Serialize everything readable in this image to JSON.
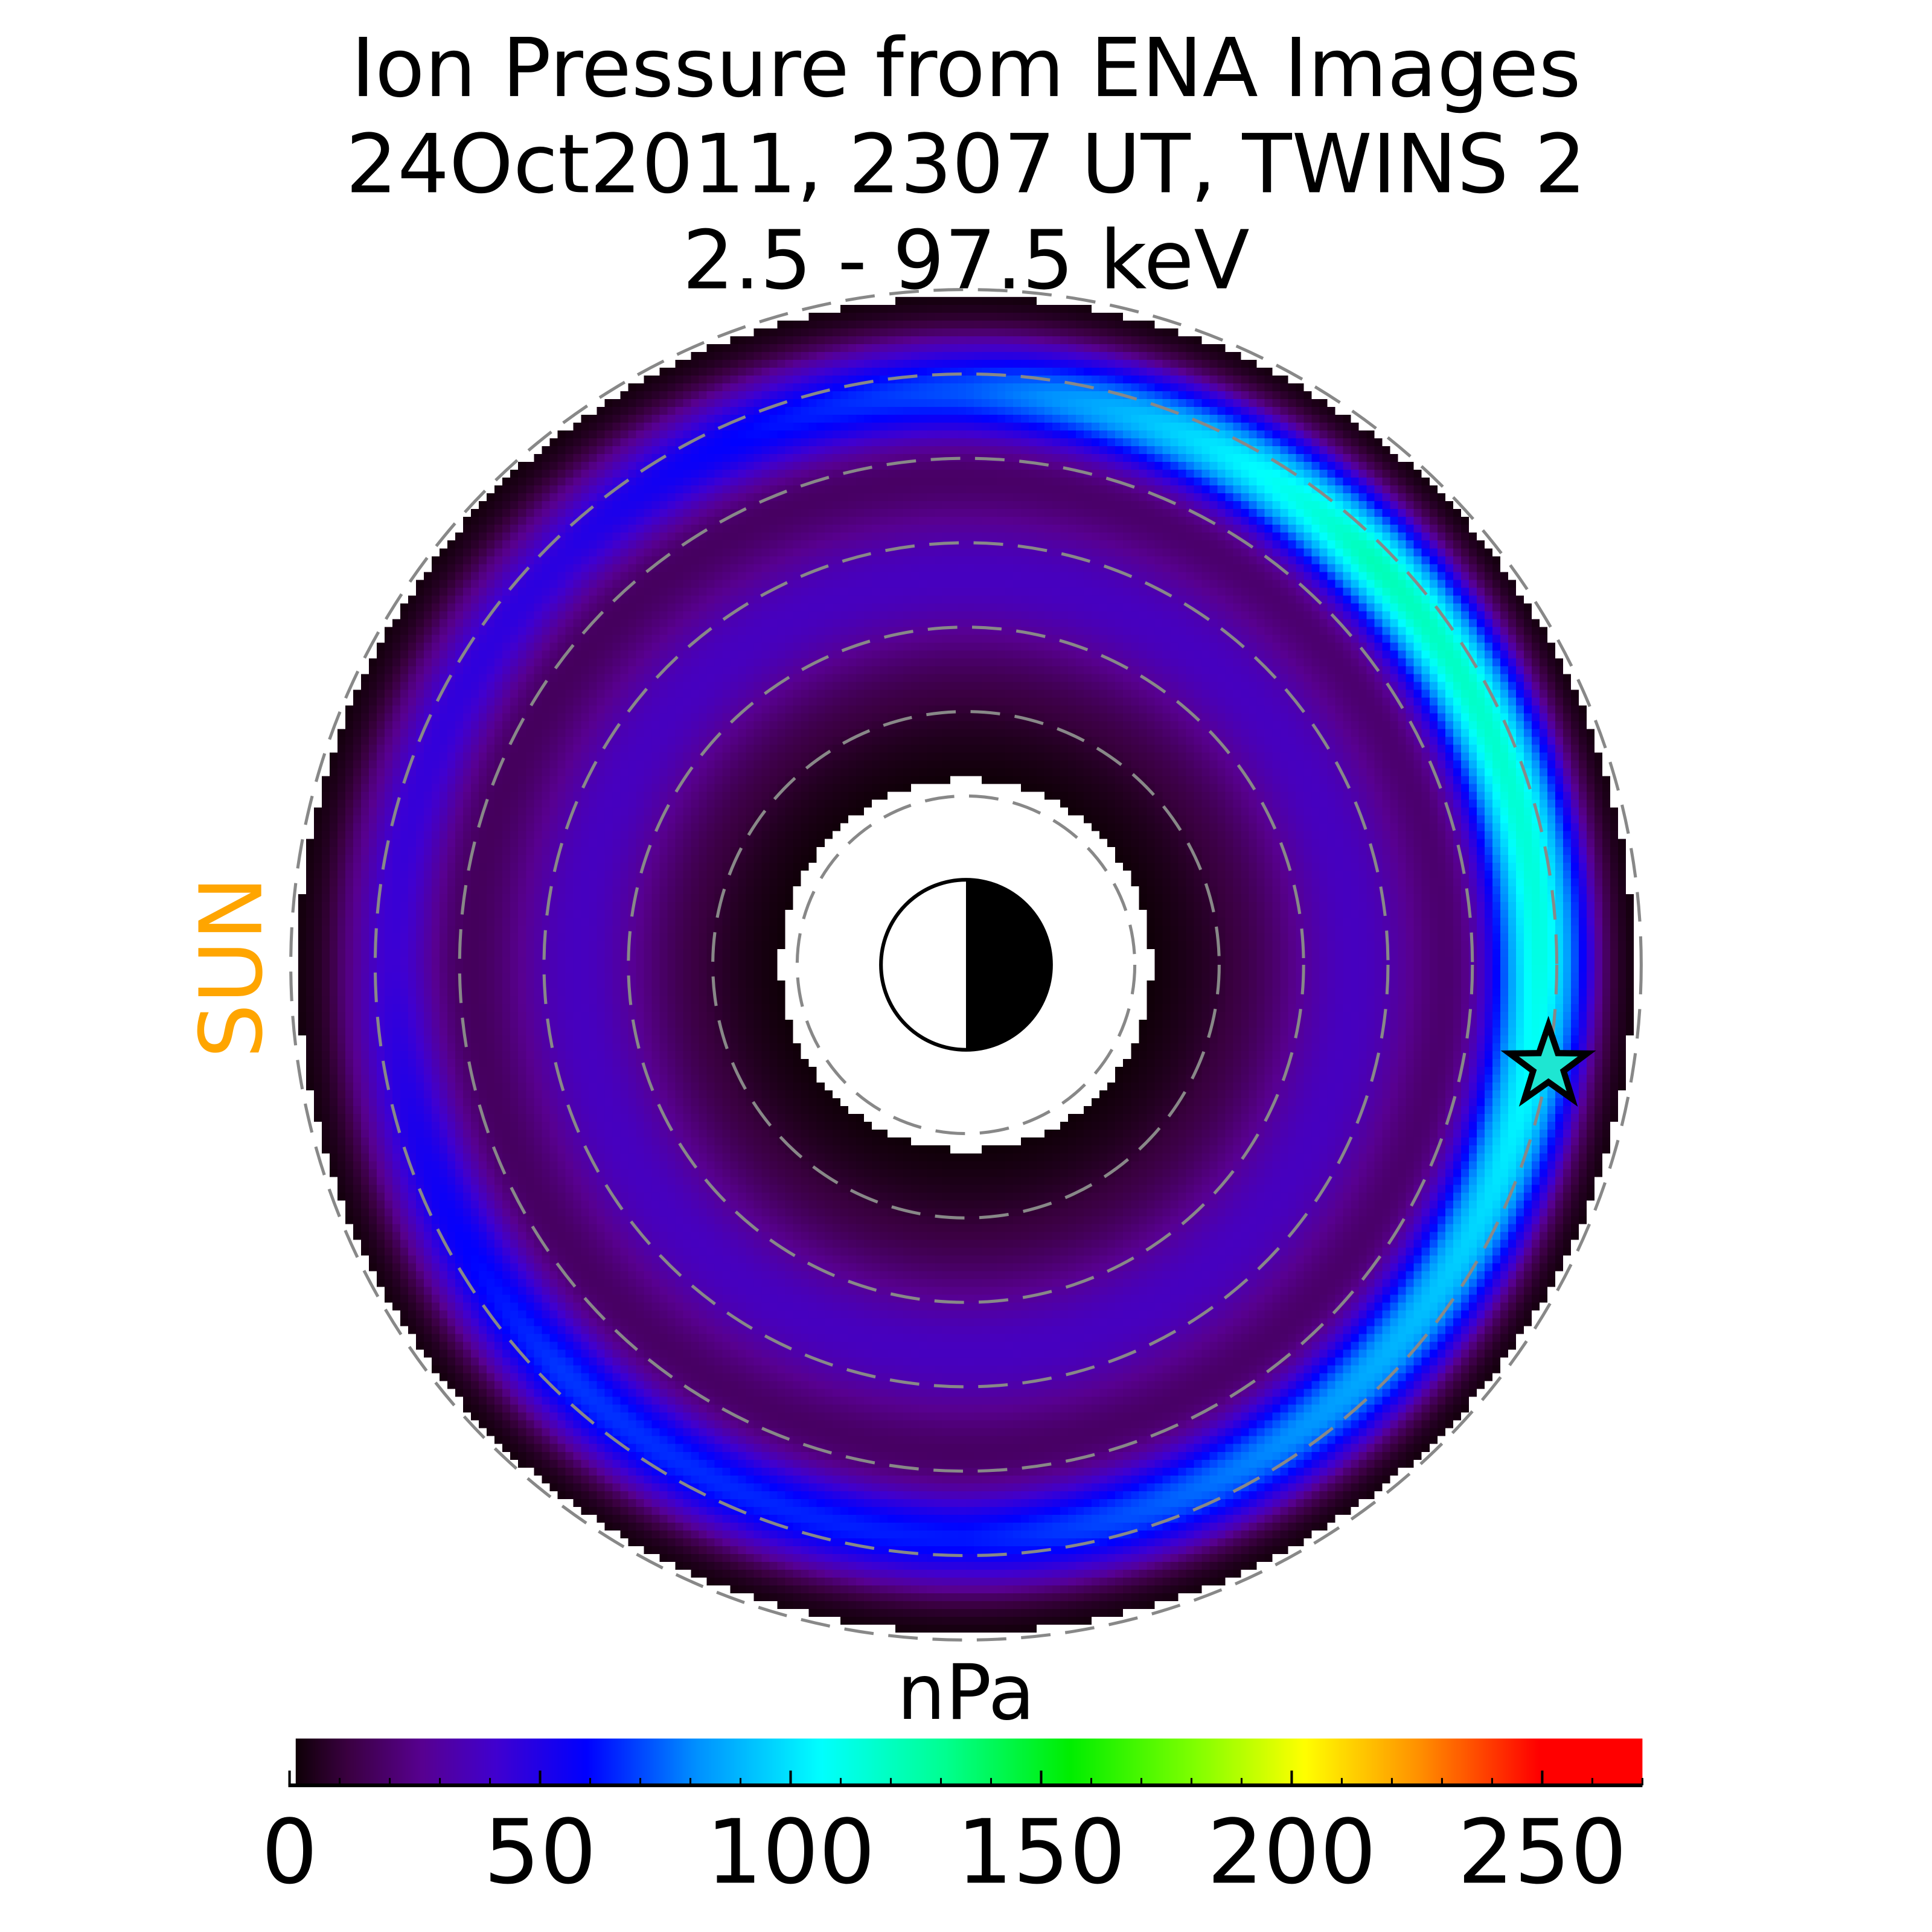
{
  "title": {
    "line1": "Ion Pressure from  ENA Images",
    "line2": "24Oct2011, 2307 UT,  TWINS 2",
    "line3": "2.5 - 97.5 keV"
  },
  "sun_label": "SUN",
  "colors": {
    "sun_label": "#ffa500",
    "grid": "#888888",
    "star_fill": "#1ee6d2"
  },
  "chart_data": {
    "type": "heatmap",
    "projection": "polar, equatorial plane, Sun to the left",
    "title": "Ion Pressure from  ENA Images / 24Oct2011, 2307 UT,  TWINS 2 / 2.5 - 97.5 keV",
    "radial_grid_Re": [
      2,
      3,
      4,
      5,
      6,
      7,
      8
    ],
    "data_radial_range_Re": [
      2.2,
      8
    ],
    "grid": true,
    "colorbar": {
      "label": "nPa",
      "range": [
        0,
        270
      ],
      "ticks": [
        "0",
        "50",
        "100",
        "150",
        "200",
        "250"
      ],
      "minor_tick_step": 10,
      "colormap_stops": [
        [
          0,
          "#100008"
        ],
        [
          10,
          "#3a0040"
        ],
        [
          25,
          "#580090"
        ],
        [
          40,
          "#4000d0"
        ],
        [
          58,
          "#0000ff"
        ],
        [
          80,
          "#0090ff"
        ],
        [
          105,
          "#00ffff"
        ],
        [
          130,
          "#00ff90"
        ],
        [
          155,
          "#00ee00"
        ],
        [
          180,
          "#80ff00"
        ],
        [
          202,
          "#ffff00"
        ],
        [
          225,
          "#ff9000"
        ],
        [
          249,
          "#ff0000"
        ],
        [
          270,
          "#ff0000"
        ]
      ]
    },
    "pressure_features": {
      "peak_ring_radius_Re": 6.8,
      "peak_value_nPa_by_MLT": {
        "00": 105,
        "03": 80,
        "06": 55,
        "09": 60,
        "12": 35,
        "15": 40,
        "18": 65,
        "21": 115
      },
      "inner_ring_radius_Re": 4.6,
      "inner_ring_value_nPa": 30
    },
    "annotations": [
      {
        "type": "star",
        "x_Re": 6.9,
        "y_Re": -1.2
      },
      {
        "type": "earth",
        "dayside": "left"
      }
    ]
  }
}
